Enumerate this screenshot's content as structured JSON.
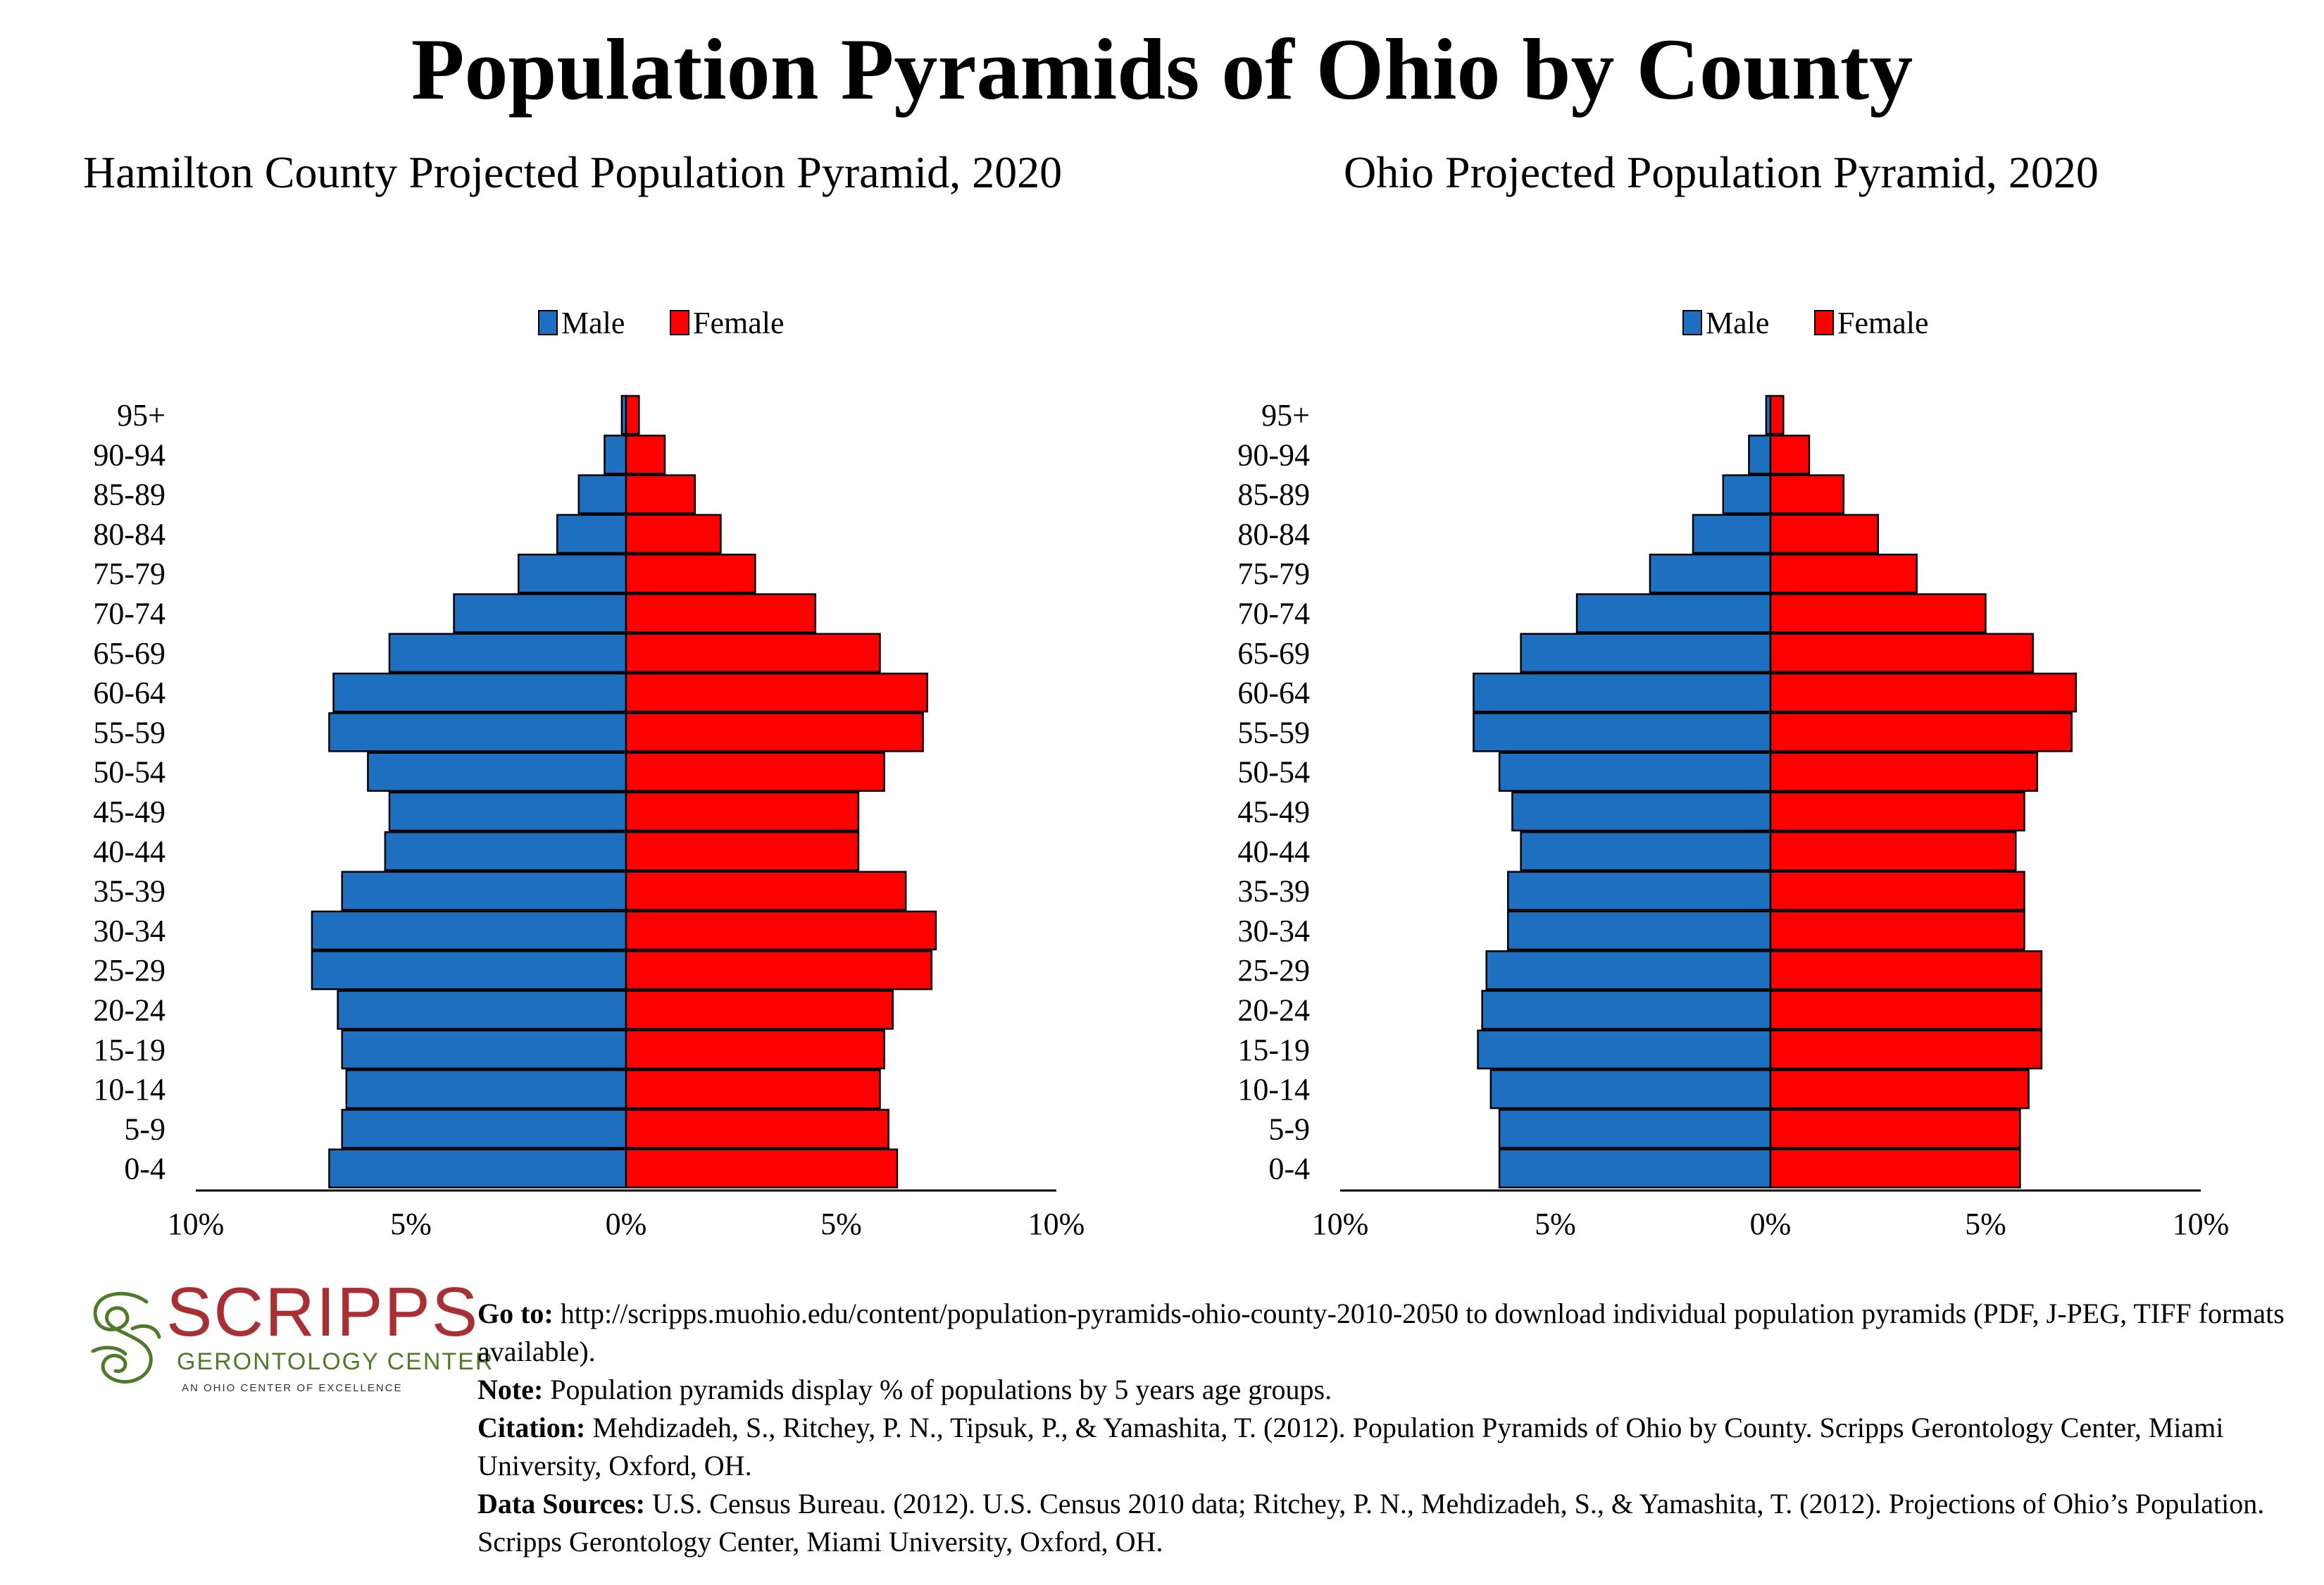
{
  "main_title": "Population Pyramids of Ohio by County",
  "colors": {
    "male": "#1f6fc1",
    "female": "#ff0000"
  },
  "age_groups": [
    "95+",
    "90-94",
    "85-89",
    "80-84",
    "75-79",
    "70-74",
    "65-69",
    "60-64",
    "55-59",
    "50-54",
    "45-49",
    "40-44",
    "35-39",
    "30-34",
    "25-29",
    "20-24",
    "15-19",
    "10-14",
    "5-9",
    "0-4"
  ],
  "chart_data": [
    {
      "type": "bar",
      "orientation": "horizontal-pyramid",
      "title": "Hamilton County Projected Population Pyramid, 2020",
      "legend": [
        "Male",
        "Female"
      ],
      "legend_position": "top",
      "categories": [
        "95+",
        "90-94",
        "85-89",
        "80-84",
        "75-79",
        "70-74",
        "65-69",
        "60-64",
        "55-59",
        "50-54",
        "45-49",
        "40-44",
        "35-39",
        "30-34",
        "25-29",
        "20-24",
        "15-19",
        "10-14",
        "5-9",
        "0-4"
      ],
      "series": [
        {
          "name": "Male",
          "values": [
            0.1,
            0.5,
            1.1,
            1.6,
            2.5,
            4.0,
            5.5,
            6.8,
            6.9,
            6.0,
            5.5,
            5.6,
            6.6,
            7.3,
            7.3,
            6.7,
            6.6,
            6.5,
            6.6,
            6.9
          ]
        },
        {
          "name": "Female",
          "values": [
            0.3,
            0.9,
            1.6,
            2.2,
            3.0,
            4.4,
            5.9,
            7.0,
            6.9,
            6.0,
            5.4,
            5.4,
            6.5,
            7.2,
            7.1,
            6.2,
            6.0,
            5.9,
            6.1,
            6.3
          ]
        }
      ],
      "xlim": [
        -10,
        10
      ],
      "xticks": [
        "10%",
        "5%",
        "0%",
        "5%",
        "10%"
      ]
    },
    {
      "type": "bar",
      "orientation": "horizontal-pyramid",
      "title": "Ohio Projected Population Pyramid, 2020",
      "legend": [
        "Male",
        "Female"
      ],
      "legend_position": "top",
      "categories": [
        "95+",
        "90-94",
        "85-89",
        "80-84",
        "75-79",
        "70-74",
        "65-69",
        "60-64",
        "55-59",
        "50-54",
        "45-49",
        "40-44",
        "35-39",
        "30-34",
        "25-29",
        "20-24",
        "15-19",
        "10-14",
        "5-9",
        "0-4"
      ],
      "series": [
        {
          "name": "Male",
          "values": [
            0.1,
            0.5,
            1.1,
            1.8,
            2.8,
            4.5,
            5.8,
            6.9,
            6.9,
            6.3,
            6.0,
            5.8,
            6.1,
            6.1,
            6.6,
            6.7,
            6.8,
            6.5,
            6.3,
            6.3
          ]
        },
        {
          "name": "Female",
          "values": [
            0.3,
            0.9,
            1.7,
            2.5,
            3.4,
            5.0,
            6.1,
            7.1,
            7.0,
            6.2,
            5.9,
            5.7,
            5.9,
            5.9,
            6.3,
            6.3,
            6.3,
            6.0,
            5.8,
            5.8
          ]
        }
      ],
      "xlim": [
        -10,
        10
      ],
      "xticks": [
        "10%",
        "5%",
        "0%",
        "5%",
        "10%"
      ]
    }
  ],
  "logo": {
    "word": "SCRIPPS",
    "subtitle": "GERONTOLOGY CENTER",
    "tagline": "AN OHIO CENTER OF EXCELLENCE"
  },
  "footer": {
    "goto_label": "Go to:",
    "goto_text": "http://scripps.muohio.edu/content/population-pyramids-ohio-county-2010-2050 to download individual population pyramids (PDF, J-PEG, TIFF formats available).",
    "note_label": "Note:",
    "note_text": "Population pyramids display % of populations by 5 years age groups.",
    "citation_label": "Citation:",
    "citation_text": "Mehdizadeh, S., Ritchey, P. N., Tipsuk, P., & Yamashita, T. (2012). Population Pyramids of Ohio by County. Scripps Gerontology Center, Miami University, Oxford, OH.",
    "sources_label": "Data Sources:",
    "sources_text": "U.S. Census Bureau. (2012). U.S. Census 2010 data; Ritchey, P. N., Mehdizadeh, S., & Yamashita, T. (2012). Projections of Ohio’s Population. Scripps Gerontology Center, Miami University, Oxford, OH."
  }
}
